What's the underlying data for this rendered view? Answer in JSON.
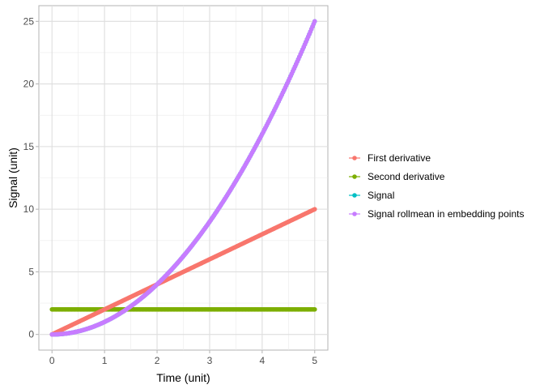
{
  "chart_data": {
    "type": "scatter",
    "title": "",
    "xlabel": "Time (unit)",
    "ylabel": "Signal (unit)",
    "xlim": [
      -0.25,
      5.25
    ],
    "ylim": [
      -1.25,
      26.25
    ],
    "x_ticks": [
      0,
      1,
      2,
      3,
      4,
      5
    ],
    "y_ticks": [
      0,
      5,
      10,
      15,
      20,
      25
    ],
    "x_tick_labels": [
      "0",
      "1",
      "2",
      "3",
      "4",
      "5"
    ],
    "y_tick_labels": [
      "0",
      "5",
      "10",
      "15",
      "20",
      "25"
    ],
    "grid": true,
    "legend_position": "right",
    "x_range": [
      0,
      5
    ],
    "series": [
      {
        "name": "First derivative",
        "color": "#F8766D",
        "formula": "2x",
        "x": [
          0,
          1,
          2,
          3,
          4,
          5
        ],
        "values": [
          0,
          2,
          4,
          6,
          8,
          10
        ]
      },
      {
        "name": "Second derivative",
        "color": "#7CAE00",
        "formula": "2",
        "x": [
          0,
          1,
          2,
          3,
          4,
          5
        ],
        "values": [
          2,
          2,
          2,
          2,
          2,
          2
        ]
      },
      {
        "name": "Signal",
        "color": "#00BFC4",
        "formula": "x^2",
        "x": [
          0,
          1,
          2,
          3,
          4,
          5
        ],
        "values": [
          0,
          1,
          4,
          9,
          16,
          25
        ]
      },
      {
        "name": "Signal rollmean in embedding points",
        "color": "#C77CFF",
        "formula": "x^2",
        "x": [
          0,
          1,
          2,
          3,
          4,
          5
        ],
        "values": [
          0,
          1,
          4,
          9,
          16,
          25
        ]
      }
    ]
  }
}
